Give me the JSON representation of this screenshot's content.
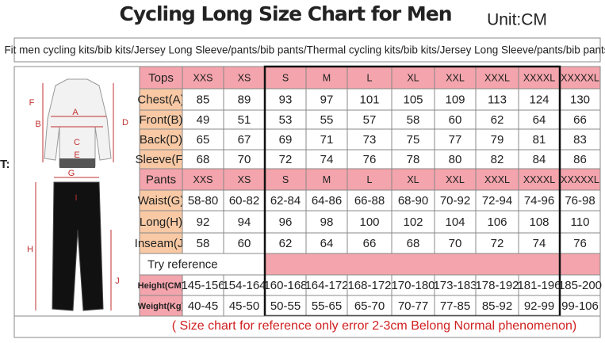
{
  "header": {
    "title": "Cycling Long Size Chart for Men",
    "unit": "Unit:CM",
    "edge_text": "T:"
  },
  "diagram_labels": [
    "A",
    "B",
    "C",
    "D",
    "E",
    "F",
    "G",
    "H",
    "I",
    "J"
  ],
  "table": {
    "caption": "Fit men cycling kits/bib kits/Jersey Long Sleeve/pants/bib pants/Thermal cycling kits/bib kits/Jersey Long Sleeve/pants/bib pants",
    "rows": [
      [
        "Tops",
        "XXS",
        "XS",
        "S",
        "M",
        "L",
        "XL",
        "XXL",
        "XXXL",
        "XXXXL",
        "XXXXXL"
      ],
      [
        "Chest(A)",
        85,
        89,
        93,
        97,
        101,
        105,
        109,
        113,
        124,
        130
      ],
      [
        "Front(B)",
        49,
        51,
        53,
        55,
        57,
        58,
        60,
        62,
        64,
        66
      ],
      [
        "Back(D)",
        65,
        67,
        69,
        71,
        73,
        75,
        77,
        79,
        81,
        83
      ],
      [
        "Sleeve(F)",
        68,
        70,
        72,
        74,
        76,
        78,
        80,
        82,
        84,
        86
      ],
      [
        "Pants",
        "XXS",
        "XS",
        "S",
        "M",
        "L",
        "XL",
        "XXL",
        "XXXL",
        "XXXXL",
        "XXXXXL"
      ],
      [
        "Waist(G)",
        "58-80",
        "60-82",
        "62-84",
        "64-86",
        "66-88",
        "68-90",
        "70-92",
        "72-94",
        "74-96",
        "76-98"
      ],
      [
        "Long(H)",
        92,
        94,
        96,
        98,
        100,
        102,
        104,
        106,
        108,
        110
      ],
      [
        "Inseam(J)",
        58,
        60,
        62,
        64,
        66,
        68,
        70,
        72,
        74,
        76
      ],
      [
        "Try reference"
      ],
      [
        "Height(CM)",
        "145-156",
        "154-164",
        "160-168",
        "164-172",
        "168-172",
        "170-180",
        "173-183",
        "178-192",
        "181-196",
        "185-200"
      ],
      [
        "Weight(Kg)",
        "40-45",
        "45-50",
        "50-55",
        "55-65",
        "65-70",
        "70-77",
        "77-85",
        "85-92",
        "92-99",
        "99-106"
      ]
    ]
  },
  "footer": "( Size chart for reference only  error 2-3cm Belong Normal phenomenon)"
}
